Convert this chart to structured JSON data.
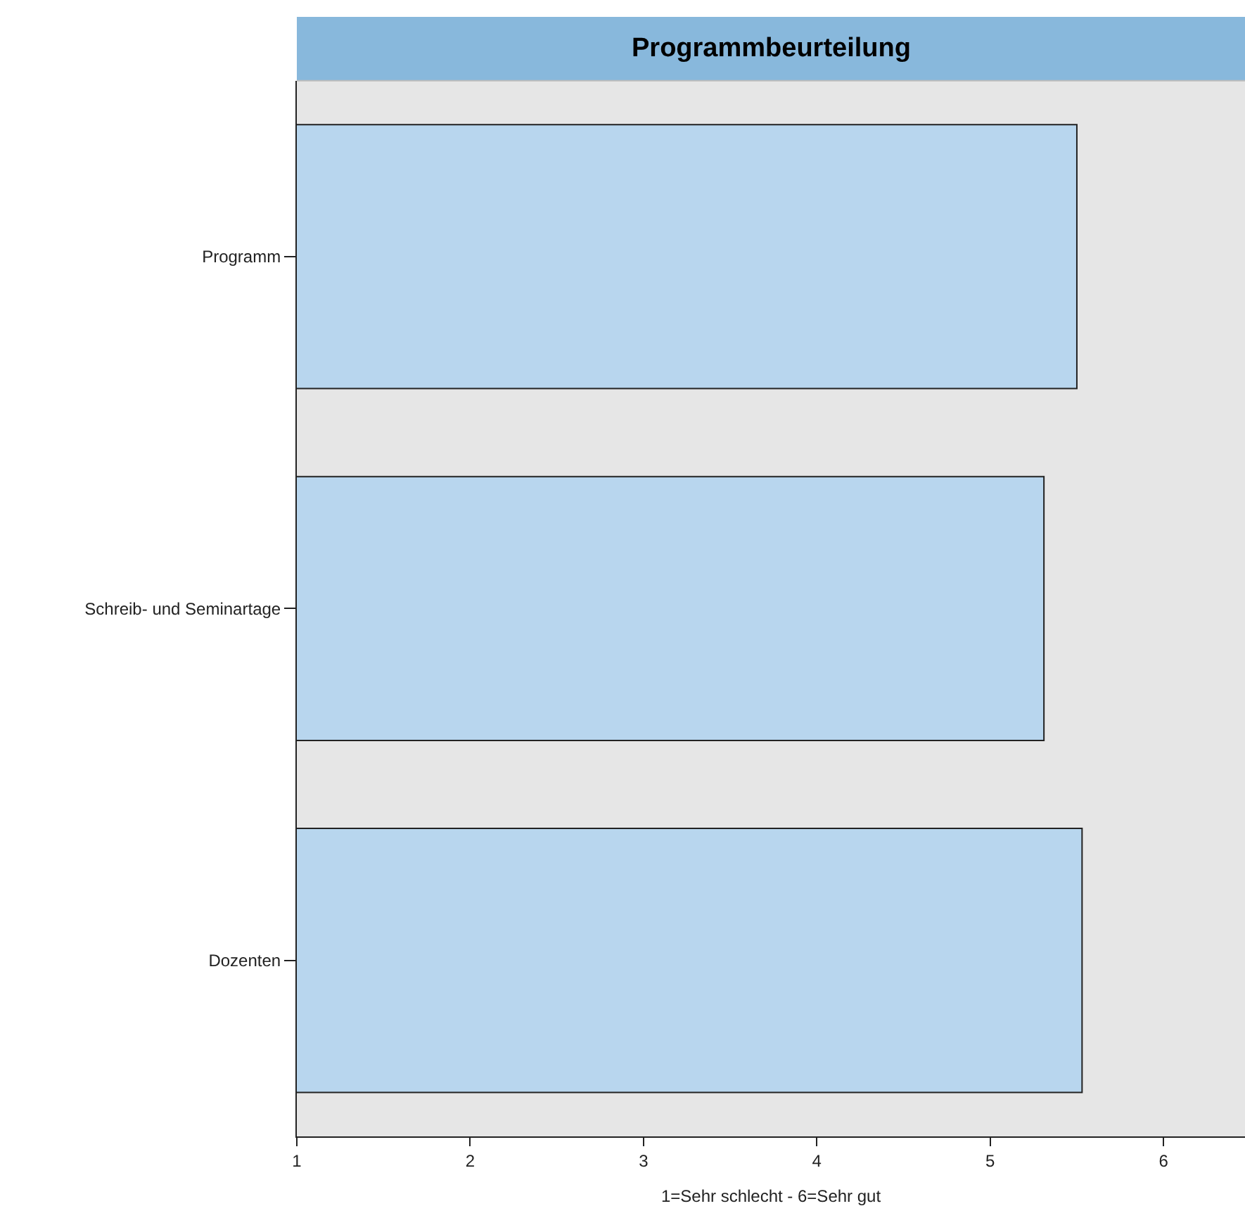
{
  "chart_data": {
    "type": "bar",
    "orientation": "horizontal",
    "title": "Programmbeurteilung",
    "xlabel": "1=Sehr schlecht - 6=Sehr gut",
    "categories": [
      "Programm",
      "Schreib- und Seminartage",
      "Dozenten"
    ],
    "values": [
      5.5,
      5.31,
      5.53
    ],
    "color": "#b8d6ee",
    "xlim": [
      1,
      6.47
    ],
    "xticks": [
      1,
      2,
      3,
      4,
      5,
      6
    ],
    "grid": false,
    "legend": false
  }
}
